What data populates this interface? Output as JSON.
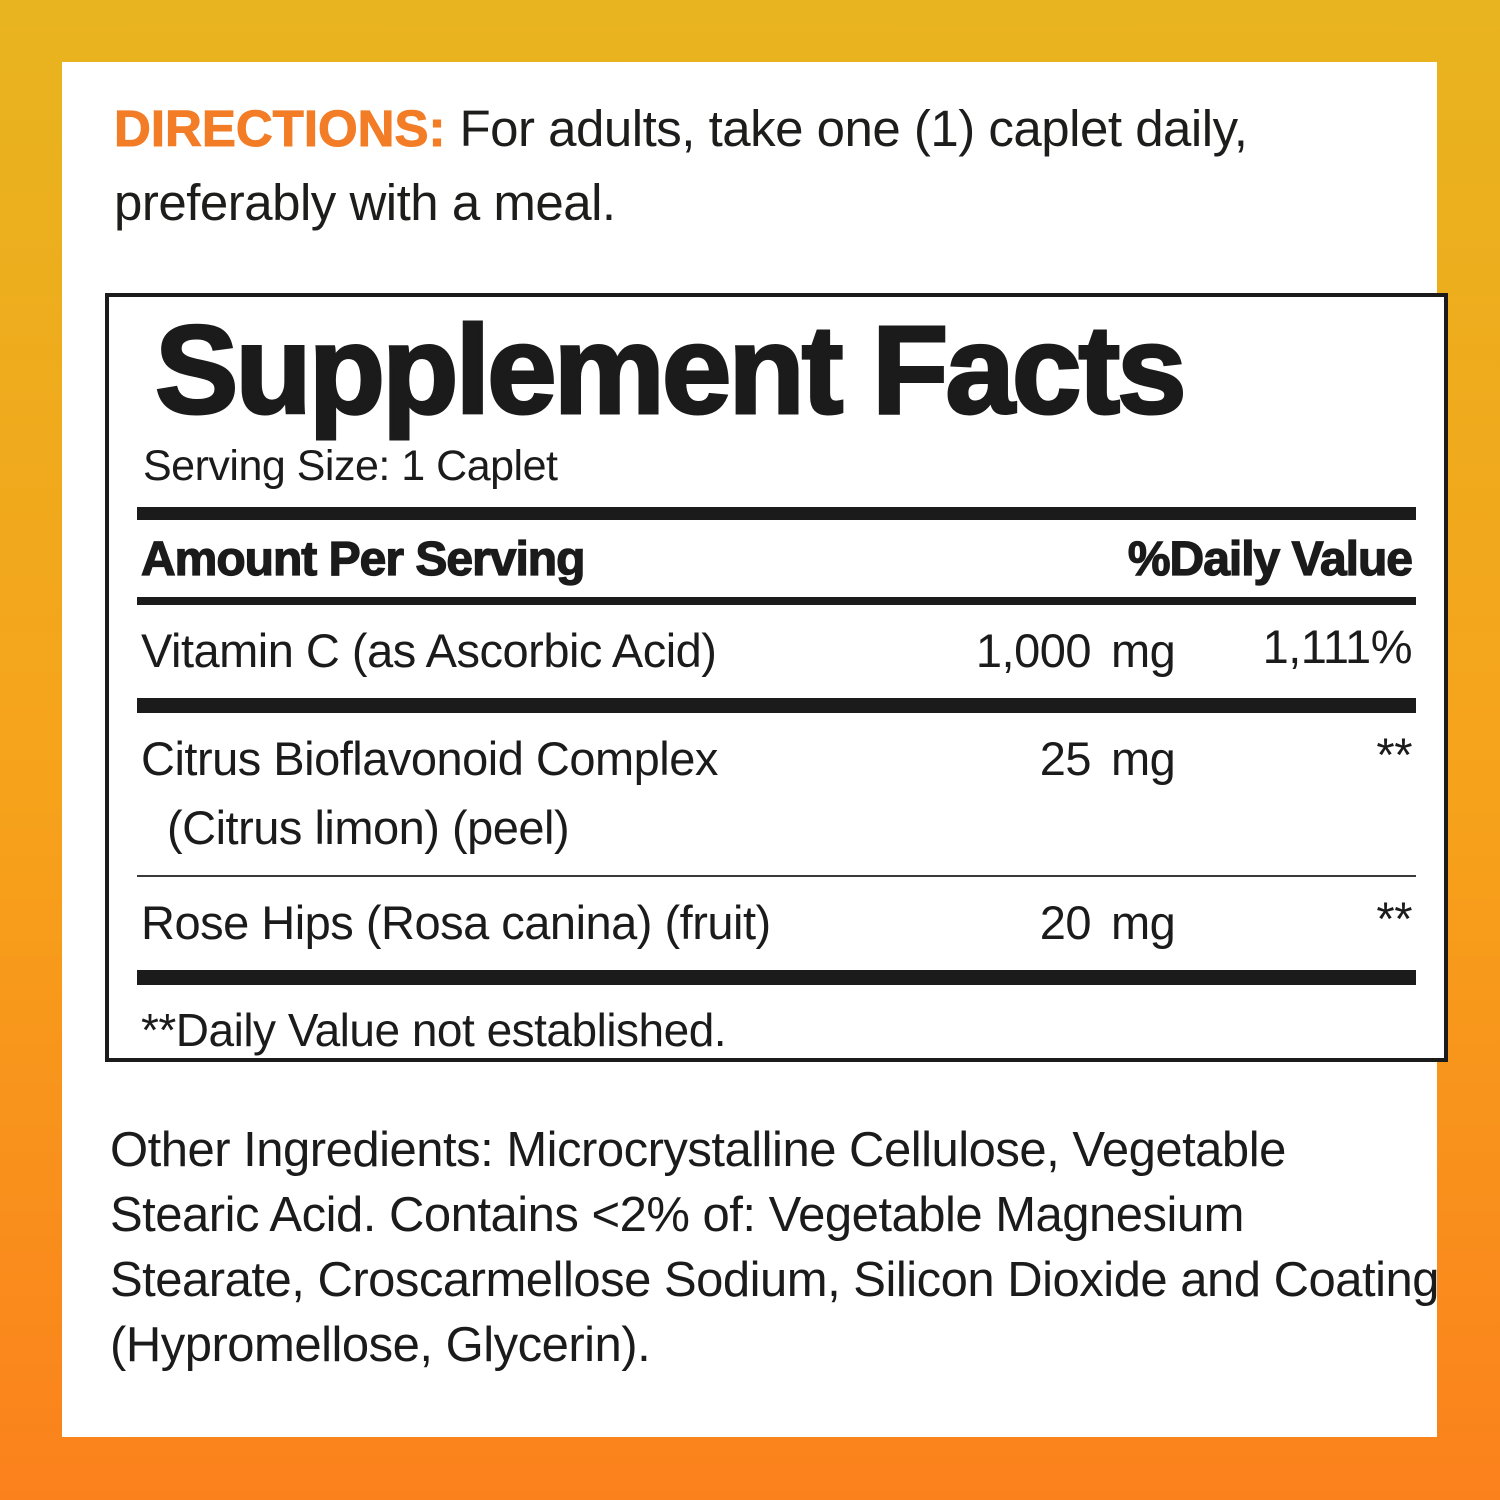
{
  "palette": {
    "border_gradient_top": "#E8B41F",
    "border_gradient_middle": "#F6A31B",
    "border_gradient_bottom": "#FB811C",
    "panel_background": "#FFFFFF",
    "text_black": "#1B1B1B",
    "directions_orange": "#F37C26"
  },
  "directions": {
    "label": "DIRECTIONS:",
    "text": "For adults, take one (1) caplet daily, preferably with a meal."
  },
  "supplement_facts": {
    "title": "Supplement Facts",
    "serving_size": "Serving Size: 1 Caplet",
    "header": {
      "amount": "Amount Per Serving",
      "daily_value": "%Daily Value"
    },
    "rows": [
      {
        "name": "Vitamin C (as Ascorbic Acid)",
        "amount": "1,000",
        "unit": "mg",
        "daily_value": "1,111%"
      },
      {
        "name": "Citrus Bioflavonoid Complex",
        "name_line2": "(Citrus limon) (peel)",
        "amount": "25",
        "unit": "mg",
        "daily_value": "**"
      },
      {
        "name": "Rose Hips (Rosa canina) (fruit)",
        "amount": "20",
        "unit": "mg",
        "daily_value": "**"
      }
    ],
    "footnote": "**Daily Value not established."
  },
  "other_ingredients": {
    "text": "Other Ingredients: Microcrystalline Cellulose, Vegetable Stearic Acid. Contains <2% of: Vegetable Magnesium Stearate, Croscarmellose Sodium, Silicon Dioxide and Coating (Hypromellose, Glycerin)."
  }
}
